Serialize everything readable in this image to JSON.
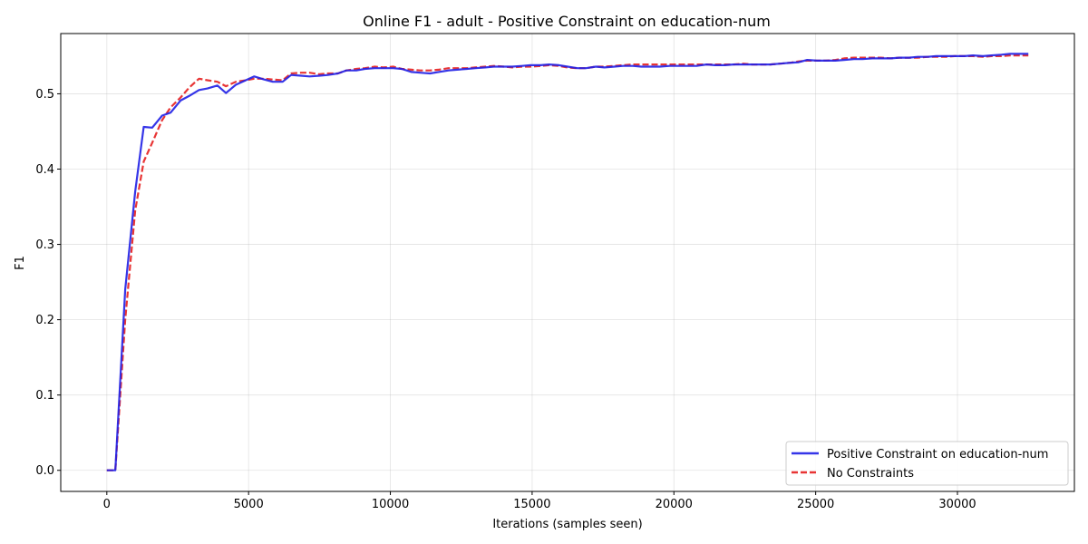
{
  "chart_data": {
    "type": "line",
    "title": "Online F1 - adult - Positive Constraint on education-num",
    "xlabel": "Iterations (samples seen)",
    "ylabel": "F1",
    "xlim": [
      -1625,
      34125
    ],
    "ylim": [
      -0.028,
      0.58
    ],
    "xticks": [
      0,
      5000,
      10000,
      15000,
      20000,
      25000,
      30000
    ],
    "yticks": [
      0.0,
      0.1,
      0.2,
      0.3,
      0.4,
      0.5
    ],
    "grid": true,
    "legend_position": "lower-right",
    "series": [
      {
        "name": "Positive Constraint on education-num",
        "color": "#1f1fe6",
        "style": "solid",
        "points": [
          [
            0,
            0.0
          ],
          [
            300,
            0.0
          ],
          [
            650,
            0.24
          ],
          [
            1000,
            0.37
          ],
          [
            1300,
            0.456
          ],
          [
            1600,
            0.455
          ],
          [
            1950,
            0.471
          ],
          [
            2250,
            0.475
          ],
          [
            2600,
            0.491
          ],
          [
            2900,
            0.497
          ],
          [
            3250,
            0.505
          ],
          [
            3550,
            0.507
          ],
          [
            3900,
            0.511
          ],
          [
            4200,
            0.501
          ],
          [
            4550,
            0.512
          ],
          [
            4900,
            0.518
          ],
          [
            5200,
            0.523
          ],
          [
            5550,
            0.519
          ],
          [
            5850,
            0.516
          ],
          [
            6200,
            0.516
          ],
          [
            6500,
            0.525
          ],
          [
            6850,
            0.524
          ],
          [
            7150,
            0.523
          ],
          [
            7500,
            0.524
          ],
          [
            7800,
            0.525
          ],
          [
            8150,
            0.527
          ],
          [
            8450,
            0.531
          ],
          [
            8800,
            0.531
          ],
          [
            9100,
            0.533
          ],
          [
            9450,
            0.534
          ],
          [
            9750,
            0.534
          ],
          [
            10100,
            0.534
          ],
          [
            10400,
            0.533
          ],
          [
            10750,
            0.529
          ],
          [
            11050,
            0.528
          ],
          [
            11400,
            0.527
          ],
          [
            11700,
            0.529
          ],
          [
            12050,
            0.531
          ],
          [
            12350,
            0.532
          ],
          [
            12700,
            0.533
          ],
          [
            13000,
            0.534
          ],
          [
            13350,
            0.535
          ],
          [
            13650,
            0.536
          ],
          [
            14000,
            0.536
          ],
          [
            14300,
            0.536
          ],
          [
            14650,
            0.537
          ],
          [
            14950,
            0.538
          ],
          [
            15300,
            0.538
          ],
          [
            15600,
            0.539
          ],
          [
            15950,
            0.538
          ],
          [
            16250,
            0.536
          ],
          [
            16600,
            0.534
          ],
          [
            16900,
            0.534
          ],
          [
            17250,
            0.536
          ],
          [
            17550,
            0.535
          ],
          [
            17900,
            0.536
          ],
          [
            18200,
            0.537
          ],
          [
            18550,
            0.537
          ],
          [
            18850,
            0.536
          ],
          [
            19200,
            0.536
          ],
          [
            19500,
            0.536
          ],
          [
            19850,
            0.537
          ],
          [
            20150,
            0.537
          ],
          [
            20500,
            0.537
          ],
          [
            20800,
            0.537
          ],
          [
            21150,
            0.539
          ],
          [
            21450,
            0.538
          ],
          [
            21800,
            0.538
          ],
          [
            22100,
            0.539
          ],
          [
            22450,
            0.539
          ],
          [
            22750,
            0.539
          ],
          [
            23100,
            0.539
          ],
          [
            23400,
            0.539
          ],
          [
            23750,
            0.54
          ],
          [
            24050,
            0.541
          ],
          [
            24400,
            0.542
          ],
          [
            24700,
            0.545
          ],
          [
            25050,
            0.544
          ],
          [
            25350,
            0.544
          ],
          [
            25700,
            0.544
          ],
          [
            26000,
            0.545
          ],
          [
            26350,
            0.546
          ],
          [
            26650,
            0.546
          ],
          [
            27000,
            0.547
          ],
          [
            27300,
            0.547
          ],
          [
            27650,
            0.547
          ],
          [
            27950,
            0.548
          ],
          [
            28300,
            0.548
          ],
          [
            28600,
            0.549
          ],
          [
            28950,
            0.549
          ],
          [
            29250,
            0.55
          ],
          [
            29600,
            0.55
          ],
          [
            29900,
            0.55
          ],
          [
            30250,
            0.55
          ],
          [
            30550,
            0.551
          ],
          [
            30900,
            0.55
          ],
          [
            31200,
            0.551
          ],
          [
            31550,
            0.552
          ],
          [
            31850,
            0.553
          ],
          [
            32200,
            0.553
          ],
          [
            32500,
            0.553
          ]
        ]
      },
      {
        "name": "No Constraints",
        "color": "#e61f1f",
        "style": "dashed",
        "points": [
          [
            0,
            0.0
          ],
          [
            300,
            0.0
          ],
          [
            650,
            0.2
          ],
          [
            1000,
            0.345
          ],
          [
            1300,
            0.41
          ],
          [
            1600,
            0.435
          ],
          [
            1950,
            0.465
          ],
          [
            2250,
            0.482
          ],
          [
            2600,
            0.495
          ],
          [
            2900,
            0.508
          ],
          [
            3250,
            0.52
          ],
          [
            3550,
            0.518
          ],
          [
            3900,
            0.516
          ],
          [
            4200,
            0.51
          ],
          [
            4550,
            0.516
          ],
          [
            4900,
            0.518
          ],
          [
            5200,
            0.52
          ],
          [
            5550,
            0.52
          ],
          [
            5850,
            0.519
          ],
          [
            6200,
            0.518
          ],
          [
            6500,
            0.527
          ],
          [
            6850,
            0.528
          ],
          [
            7150,
            0.528
          ],
          [
            7500,
            0.526
          ],
          [
            7800,
            0.527
          ],
          [
            8150,
            0.527
          ],
          [
            8450,
            0.531
          ],
          [
            8800,
            0.533
          ],
          [
            9100,
            0.534
          ],
          [
            9450,
            0.536
          ],
          [
            9750,
            0.535
          ],
          [
            10100,
            0.536
          ],
          [
            10400,
            0.533
          ],
          [
            10750,
            0.532
          ],
          [
            11050,
            0.531
          ],
          [
            11400,
            0.531
          ],
          [
            11700,
            0.532
          ],
          [
            12050,
            0.534
          ],
          [
            12350,
            0.534
          ],
          [
            12700,
            0.534
          ],
          [
            13000,
            0.535
          ],
          [
            13350,
            0.536
          ],
          [
            13650,
            0.537
          ],
          [
            14000,
            0.536
          ],
          [
            14300,
            0.535
          ],
          [
            14650,
            0.536
          ],
          [
            14950,
            0.536
          ],
          [
            15300,
            0.537
          ],
          [
            15600,
            0.538
          ],
          [
            15950,
            0.537
          ],
          [
            16250,
            0.535
          ],
          [
            16600,
            0.534
          ],
          [
            16900,
            0.534
          ],
          [
            17250,
            0.536
          ],
          [
            17550,
            0.536
          ],
          [
            17900,
            0.537
          ],
          [
            18200,
            0.538
          ],
          [
            18550,
            0.539
          ],
          [
            18850,
            0.539
          ],
          [
            19200,
            0.539
          ],
          [
            19500,
            0.539
          ],
          [
            19850,
            0.539
          ],
          [
            20150,
            0.539
          ],
          [
            20500,
            0.539
          ],
          [
            20800,
            0.539
          ],
          [
            21150,
            0.539
          ],
          [
            21450,
            0.539
          ],
          [
            21800,
            0.539
          ],
          [
            22100,
            0.539
          ],
          [
            22450,
            0.54
          ],
          [
            22750,
            0.539
          ],
          [
            23100,
            0.539
          ],
          [
            23400,
            0.539
          ],
          [
            23750,
            0.54
          ],
          [
            24050,
            0.541
          ],
          [
            24400,
            0.543
          ],
          [
            24700,
            0.544
          ],
          [
            25050,
            0.544
          ],
          [
            25350,
            0.544
          ],
          [
            25700,
            0.545
          ],
          [
            26000,
            0.547
          ],
          [
            26350,
            0.548
          ],
          [
            26650,
            0.548
          ],
          [
            27000,
            0.548
          ],
          [
            27300,
            0.548
          ],
          [
            27650,
            0.547
          ],
          [
            27950,
            0.548
          ],
          [
            28300,
            0.548
          ],
          [
            28600,
            0.548
          ],
          [
            28950,
            0.549
          ],
          [
            29250,
            0.549
          ],
          [
            29600,
            0.549
          ],
          [
            29900,
            0.55
          ],
          [
            30250,
            0.55
          ],
          [
            30550,
            0.55
          ],
          [
            30900,
            0.549
          ],
          [
            31200,
            0.55
          ],
          [
            31550,
            0.55
          ],
          [
            31850,
            0.551
          ],
          [
            32200,
            0.551
          ],
          [
            32500,
            0.551
          ]
        ]
      }
    ]
  }
}
